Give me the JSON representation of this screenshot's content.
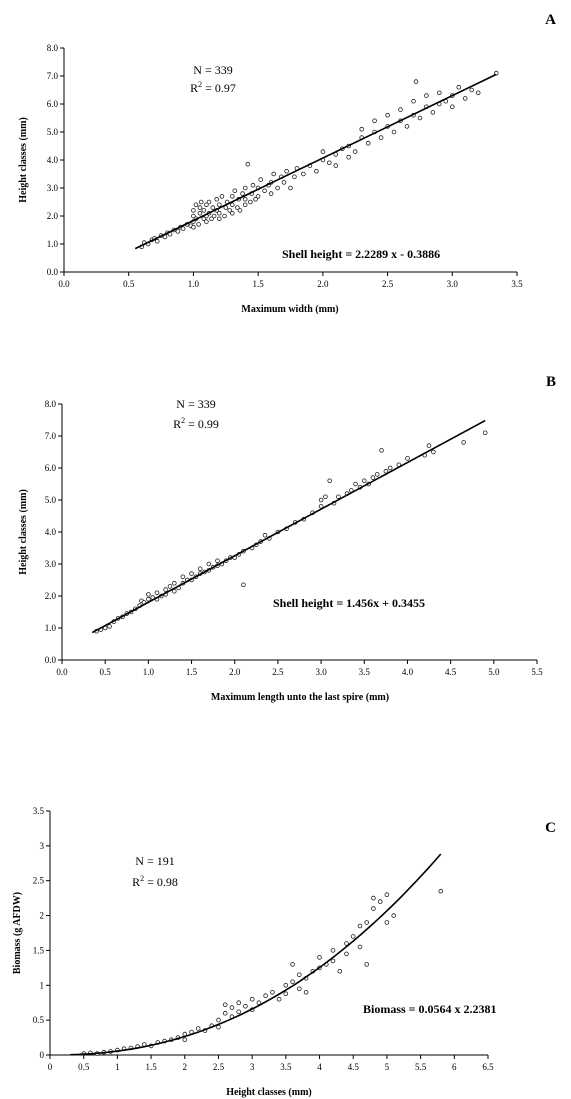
{
  "chart_data": [
    {
      "panel": "A",
      "type": "scatter",
      "xlabel": "Maximum width (mm)",
      "ylabel": "Height classes (mm)",
      "xlim": [
        0,
        3.5
      ],
      "ylim": [
        0,
        8
      ],
      "xticks": [
        "0.0",
        "0.5",
        "1.0",
        "1.5",
        "2.0",
        "2.5",
        "3.0",
        "3.5"
      ],
      "yticks": [
        "0.0",
        "1.0",
        "2.0",
        "3.0",
        "4.0",
        "5.0",
        "6.0",
        "7.0",
        "8.0"
      ],
      "n_label": "N = 339",
      "r2_prefix": "R",
      "r2_sup": "2",
      "r2_value": " = 0.97",
      "equation": "Shell height = 2.2289 x - 0.3886",
      "fit": {
        "kind": "linear",
        "slope": 2.2289,
        "intercept": -0.3886,
        "x_range": [
          0.55,
          3.34
        ]
      },
      "points": [
        [
          0.6,
          0.9
        ],
        [
          0.62,
          1.05
        ],
        [
          0.65,
          1.0
        ],
        [
          0.68,
          1.15
        ],
        [
          0.7,
          1.2
        ],
        [
          0.72,
          1.1
        ],
        [
          0.75,
          1.3
        ],
        [
          0.78,
          1.25
        ],
        [
          0.8,
          1.4
        ],
        [
          0.82,
          1.35
        ],
        [
          0.85,
          1.5
        ],
        [
          0.88,
          1.45
        ],
        [
          0.9,
          1.6
        ],
        [
          0.92,
          1.55
        ],
        [
          0.95,
          1.7
        ],
        [
          0.98,
          1.65
        ],
        [
          1.0,
          1.6
        ],
        [
          1.0,
          1.8
        ],
        [
          1.0,
          2.0
        ],
        [
          1.0,
          2.2
        ],
        [
          1.02,
          1.9
        ],
        [
          1.02,
          2.4
        ],
        [
          1.04,
          1.7
        ],
        [
          1.05,
          2.1
        ],
        [
          1.05,
          2.3
        ],
        [
          1.06,
          2.5
        ],
        [
          1.08,
          1.9
        ],
        [
          1.08,
          2.2
        ],
        [
          1.1,
          1.8
        ],
        [
          1.1,
          2.0
        ],
        [
          1.1,
          2.4
        ],
        [
          1.12,
          2.1
        ],
        [
          1.12,
          2.5
        ],
        [
          1.14,
          1.9
        ],
        [
          1.15,
          2.3
        ],
        [
          1.16,
          2.0
        ],
        [
          1.18,
          2.2
        ],
        [
          1.18,
          2.6
        ],
        [
          1.2,
          1.9
        ],
        [
          1.2,
          2.1
        ],
        [
          1.2,
          2.4
        ],
        [
          1.22,
          2.7
        ],
        [
          1.24,
          2.0
        ],
        [
          1.25,
          2.3
        ],
        [
          1.26,
          2.5
        ],
        [
          1.28,
          2.2
        ],
        [
          1.3,
          2.1
        ],
        [
          1.3,
          2.4
        ],
        [
          1.3,
          2.7
        ],
        [
          1.32,
          2.9
        ],
        [
          1.34,
          2.3
        ],
        [
          1.35,
          2.6
        ],
        [
          1.36,
          2.2
        ],
        [
          1.38,
          2.8
        ],
        [
          1.4,
          2.4
        ],
        [
          1.4,
          2.6
        ],
        [
          1.4,
          3.0
        ],
        [
          1.42,
          3.85
        ],
        [
          1.44,
          2.5
        ],
        [
          1.45,
          2.8
        ],
        [
          1.46,
          3.1
        ],
        [
          1.48,
          2.6
        ],
        [
          1.5,
          2.7
        ],
        [
          1.5,
          3.0
        ],
        [
          1.52,
          3.3
        ],
        [
          1.55,
          2.9
        ],
        [
          1.58,
          3.1
        ],
        [
          1.6,
          2.8
        ],
        [
          1.6,
          3.2
        ],
        [
          1.62,
          3.5
        ],
        [
          1.65,
          3.0
        ],
        [
          1.68,
          3.4
        ],
        [
          1.7,
          3.2
        ],
        [
          1.72,
          3.6
        ],
        [
          1.75,
          3.0
        ],
        [
          1.78,
          3.4
        ],
        [
          1.8,
          3.7
        ],
        [
          1.85,
          3.5
        ],
        [
          1.9,
          3.8
        ],
        [
          1.95,
          3.6
        ],
        [
          2.0,
          4.0
        ],
        [
          2.0,
          4.3
        ],
        [
          2.05,
          3.9
        ],
        [
          2.1,
          4.2
        ],
        [
          2.1,
          3.8
        ],
        [
          2.15,
          4.4
        ],
        [
          2.2,
          4.1
        ],
        [
          2.2,
          4.5
        ],
        [
          2.25,
          4.3
        ],
        [
          2.3,
          4.8
        ],
        [
          2.3,
          5.1
        ],
        [
          2.35,
          4.6
        ],
        [
          2.4,
          5.0
        ],
        [
          2.4,
          5.4
        ],
        [
          2.45,
          4.8
        ],
        [
          2.5,
          5.2
        ],
        [
          2.5,
          5.6
        ],
        [
          2.55,
          5.0
        ],
        [
          2.6,
          5.4
        ],
        [
          2.6,
          5.8
        ],
        [
          2.65,
          5.2
        ],
        [
          2.7,
          5.6
        ],
        [
          2.7,
          6.1
        ],
        [
          2.72,
          6.8
        ],
        [
          2.75,
          5.5
        ],
        [
          2.8,
          5.9
        ],
        [
          2.8,
          6.3
        ],
        [
          2.85,
          5.7
        ],
        [
          2.9,
          6.0
        ],
        [
          2.9,
          6.4
        ],
        [
          2.95,
          6.1
        ],
        [
          3.0,
          6.3
        ],
        [
          3.0,
          5.9
        ],
        [
          3.05,
          6.6
        ],
        [
          3.1,
          6.2
        ],
        [
          3.15,
          6.5
        ],
        [
          3.2,
          6.4
        ],
        [
          3.34,
          7.1
        ]
      ]
    },
    {
      "panel": "B",
      "type": "scatter",
      "xlabel": "Maximum length unto the last spire (mm)",
      "ylabel": "Height classes (mm)",
      "xlim": [
        0,
        5.5
      ],
      "ylim": [
        0,
        8
      ],
      "xticks": [
        "0.0",
        "0.5",
        "1.0",
        "1.5",
        "2.0",
        "2.5",
        "3.0",
        "3.5",
        "4.0",
        "4.5",
        "5.0",
        "5.5"
      ],
      "yticks": [
        "0.0",
        "1.0",
        "2.0",
        "3.0",
        "4.0",
        "5.0",
        "6.0",
        "7.0",
        "8.0"
      ],
      "n_label": "N = 339",
      "r2_prefix": "R",
      "r2_sup": "2",
      "r2_value": " = 0.99",
      "equation": "Shell height = 1.456x + 0.3455",
      "fit": {
        "kind": "linear",
        "slope": 1.456,
        "intercept": 0.3455,
        "x_range": [
          0.35,
          4.9
        ]
      },
      "points": [
        [
          0.4,
          0.9
        ],
        [
          0.45,
          0.95
        ],
        [
          0.5,
          1.0
        ],
        [
          0.55,
          1.05
        ],
        [
          0.6,
          1.2
        ],
        [
          0.65,
          1.3
        ],
        [
          0.7,
          1.35
        ],
        [
          0.75,
          1.45
        ],
        [
          0.8,
          1.5
        ],
        [
          0.85,
          1.6
        ],
        [
          0.9,
          1.7
        ],
        [
          0.92,
          1.85
        ],
        [
          0.95,
          1.8
        ],
        [
          1.0,
          1.9
        ],
        [
          1.0,
          2.05
        ],
        [
          1.05,
          1.95
        ],
        [
          1.1,
          2.1
        ],
        [
          1.1,
          1.9
        ],
        [
          1.15,
          2.0
        ],
        [
          1.2,
          2.2
        ],
        [
          1.2,
          2.05
        ],
        [
          1.25,
          2.3
        ],
        [
          1.3,
          2.15
        ],
        [
          1.3,
          2.4
        ],
        [
          1.35,
          2.25
        ],
        [
          1.4,
          2.4
        ],
        [
          1.4,
          2.6
        ],
        [
          1.45,
          2.5
        ],
        [
          1.5,
          2.5
        ],
        [
          1.5,
          2.7
        ],
        [
          1.55,
          2.6
        ],
        [
          1.6,
          2.7
        ],
        [
          1.6,
          2.85
        ],
        [
          1.65,
          2.75
        ],
        [
          1.7,
          2.8
        ],
        [
          1.7,
          3.0
        ],
        [
          1.75,
          2.9
        ],
        [
          1.8,
          2.95
        ],
        [
          1.8,
          3.1
        ],
        [
          1.85,
          3.0
        ],
        [
          1.9,
          3.1
        ],
        [
          1.95,
          3.2
        ],
        [
          2.0,
          3.2
        ],
        [
          2.05,
          3.3
        ],
        [
          2.1,
          2.35
        ],
        [
          2.1,
          3.4
        ],
        [
          2.2,
          3.5
        ],
        [
          2.25,
          3.6
        ],
        [
          2.3,
          3.7
        ],
        [
          2.35,
          3.9
        ],
        [
          2.4,
          3.8
        ],
        [
          2.5,
          4.0
        ],
        [
          2.6,
          4.1
        ],
        [
          2.7,
          4.3
        ],
        [
          2.8,
          4.4
        ],
        [
          2.9,
          4.6
        ],
        [
          3.0,
          4.8
        ],
        [
          3.0,
          5.0
        ],
        [
          3.05,
          5.1
        ],
        [
          3.1,
          5.6
        ],
        [
          3.15,
          4.9
        ],
        [
          3.2,
          5.1
        ],
        [
          3.3,
          5.2
        ],
        [
          3.35,
          5.3
        ],
        [
          3.4,
          5.5
        ],
        [
          3.45,
          5.4
        ],
        [
          3.5,
          5.6
        ],
        [
          3.55,
          5.5
        ],
        [
          3.6,
          5.7
        ],
        [
          3.65,
          5.8
        ],
        [
          3.7,
          6.55
        ],
        [
          3.75,
          5.9
        ],
        [
          3.8,
          6.0
        ],
        [
          3.9,
          6.1
        ],
        [
          4.0,
          6.3
        ],
        [
          4.2,
          6.4
        ],
        [
          4.25,
          6.7
        ],
        [
          4.3,
          6.5
        ],
        [
          4.65,
          6.8
        ],
        [
          4.9,
          7.1
        ]
      ]
    },
    {
      "panel": "C",
      "type": "scatter",
      "xlabel": "Height classes (mm)",
      "ylabel": "Biomass (g AFDW)",
      "xlim": [
        0,
        6.5
      ],
      "ylim": [
        0,
        3.5
      ],
      "xticks": [
        "0",
        "0.5",
        "1",
        "1.5",
        "2",
        "2.5",
        "3",
        "3.5",
        "4",
        "4.5",
        "5",
        "5.5",
        "6",
        "6.5"
      ],
      "yticks": [
        "0",
        "0.5",
        "1",
        "1.5",
        "2",
        "2.5",
        "3",
        "3.5"
      ],
      "n_label": "N = 191",
      "r2_prefix": "R",
      "r2_sup": "2",
      "r2_value": " = 0.98",
      "equation": "Biomass = 0.0564 x 2.2381",
      "fit": {
        "kind": "power",
        "a": 0.0564,
        "b": 2.2381,
        "x_range": [
          0.3,
          5.8
        ]
      },
      "points": [
        [
          0.5,
          0.02
        ],
        [
          0.6,
          0.03
        ],
        [
          0.7,
          0.02
        ],
        [
          0.8,
          0.04
        ],
        [
          0.9,
          0.05
        ],
        [
          1.0,
          0.07
        ],
        [
          1.1,
          0.09
        ],
        [
          1.2,
          0.1
        ],
        [
          1.3,
          0.12
        ],
        [
          1.4,
          0.15
        ],
        [
          1.5,
          0.13
        ],
        [
          1.6,
          0.18
        ],
        [
          1.7,
          0.2
        ],
        [
          1.8,
          0.22
        ],
        [
          1.9,
          0.25
        ],
        [
          2.0,
          0.3
        ],
        [
          2.0,
          0.22
        ],
        [
          2.1,
          0.33
        ],
        [
          2.2,
          0.38
        ],
        [
          2.3,
          0.35
        ],
        [
          2.4,
          0.42
        ],
        [
          2.5,
          0.5
        ],
        [
          2.5,
          0.4
        ],
        [
          2.6,
          0.6
        ],
        [
          2.6,
          0.72
        ],
        [
          2.7,
          0.55
        ],
        [
          2.7,
          0.68
        ],
        [
          2.8,
          0.62
        ],
        [
          2.8,
          0.75
        ],
        [
          2.9,
          0.7
        ],
        [
          3.0,
          0.65
        ],
        [
          3.0,
          0.8
        ],
        [
          3.1,
          0.75
        ],
        [
          3.2,
          0.85
        ],
        [
          3.3,
          0.9
        ],
        [
          3.4,
          0.8
        ],
        [
          3.5,
          1.0
        ],
        [
          3.5,
          0.88
        ],
        [
          3.6,
          1.05
        ],
        [
          3.6,
          1.3
        ],
        [
          3.7,
          0.95
        ],
        [
          3.7,
          1.15
        ],
        [
          3.8,
          1.1
        ],
        [
          3.8,
          0.9
        ],
        [
          3.9,
          1.2
        ],
        [
          4.0,
          1.25
        ],
        [
          4.0,
          1.4
        ],
        [
          4.1,
          1.3
        ],
        [
          4.2,
          1.35
        ],
        [
          4.2,
          1.5
        ],
        [
          4.3,
          1.2
        ],
        [
          4.4,
          1.45
        ],
        [
          4.4,
          1.6
        ],
        [
          4.5,
          1.7
        ],
        [
          4.6,
          1.55
        ],
        [
          4.6,
          1.85
        ],
        [
          4.7,
          1.9
        ],
        [
          4.7,
          1.3
        ],
        [
          4.8,
          2.25
        ],
        [
          4.8,
          2.1
        ],
        [
          4.9,
          2.2
        ],
        [
          5.0,
          2.3
        ],
        [
          5.0,
          1.9
        ],
        [
          5.1,
          2.0
        ],
        [
          5.8,
          2.35
        ]
      ]
    }
  ]
}
